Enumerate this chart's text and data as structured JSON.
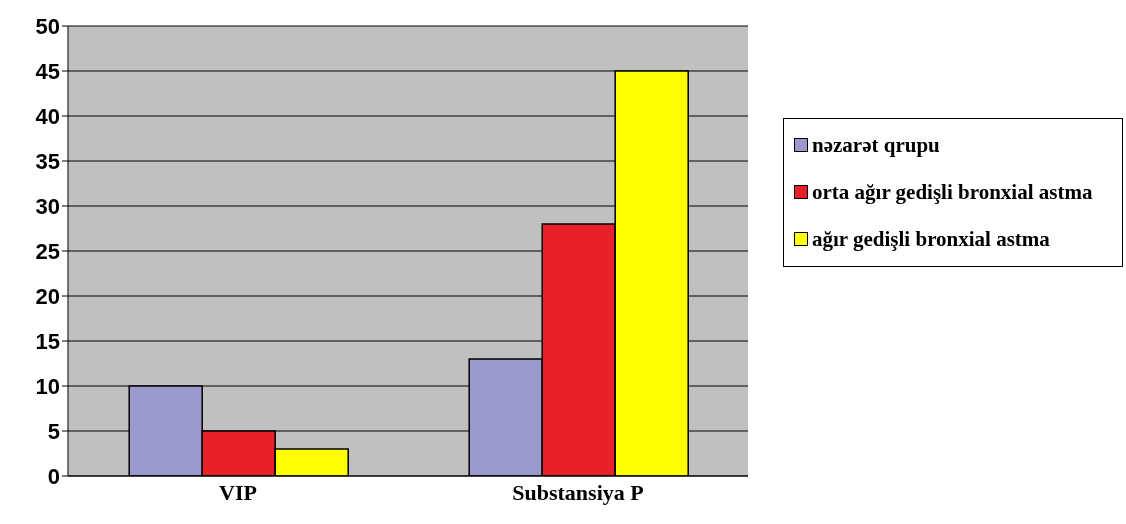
{
  "chart_data": {
    "type": "bar",
    "categories": [
      "VIP",
      "Substansiya P"
    ],
    "series": [
      {
        "name": "nəzarət qrupu",
        "color": "#9999cc",
        "values": [
          10,
          13
        ]
      },
      {
        "name": "orta ağır gedişli bronxial astma",
        "color": "#e8202a",
        "values": [
          5,
          28
        ]
      },
      {
        "name": "ağır gedişli bronxial astma",
        "color": "#ffff00",
        "values": [
          3,
          45
        ]
      }
    ],
    "ylim": [
      0,
      50
    ],
    "yticks": [
      0,
      5,
      10,
      15,
      20,
      25,
      30,
      35,
      40,
      45,
      50
    ],
    "grid": "y",
    "legend": "right"
  }
}
